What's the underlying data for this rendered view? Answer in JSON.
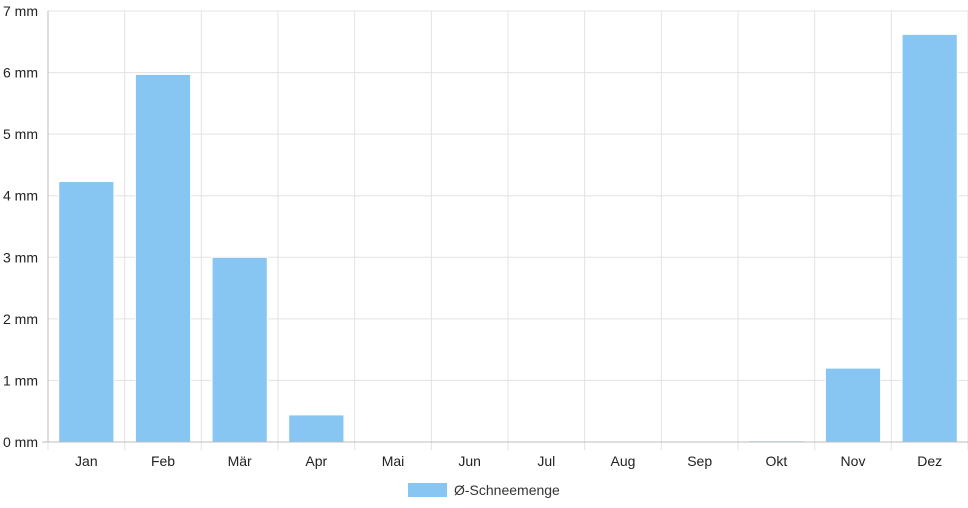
{
  "chart_data": {
    "type": "bar",
    "categories": [
      "Jan",
      "Feb",
      "Mär",
      "Apr",
      "Mai",
      "Jun",
      "Jul",
      "Aug",
      "Sep",
      "Okt",
      "Nov",
      "Dez"
    ],
    "series": [
      {
        "name": "Ø-Schneemenge",
        "values": [
          4.23,
          5.97,
          3.0,
          0.44,
          0,
          0,
          0,
          0,
          0,
          0.02,
          1.2,
          6.62
        ]
      }
    ],
    "yticks": [
      "0 mm",
      "1 mm",
      "2 mm",
      "3 mm",
      "4 mm",
      "5 mm",
      "6 mm",
      "7 mm"
    ],
    "ylim": [
      0,
      7
    ],
    "grid": true,
    "legend": "bottom",
    "colors": {
      "bar": "#87c5f3",
      "bar_border": "#ffffff",
      "grid": "#e3e3e3",
      "axis": "#bdbdbd"
    }
  }
}
